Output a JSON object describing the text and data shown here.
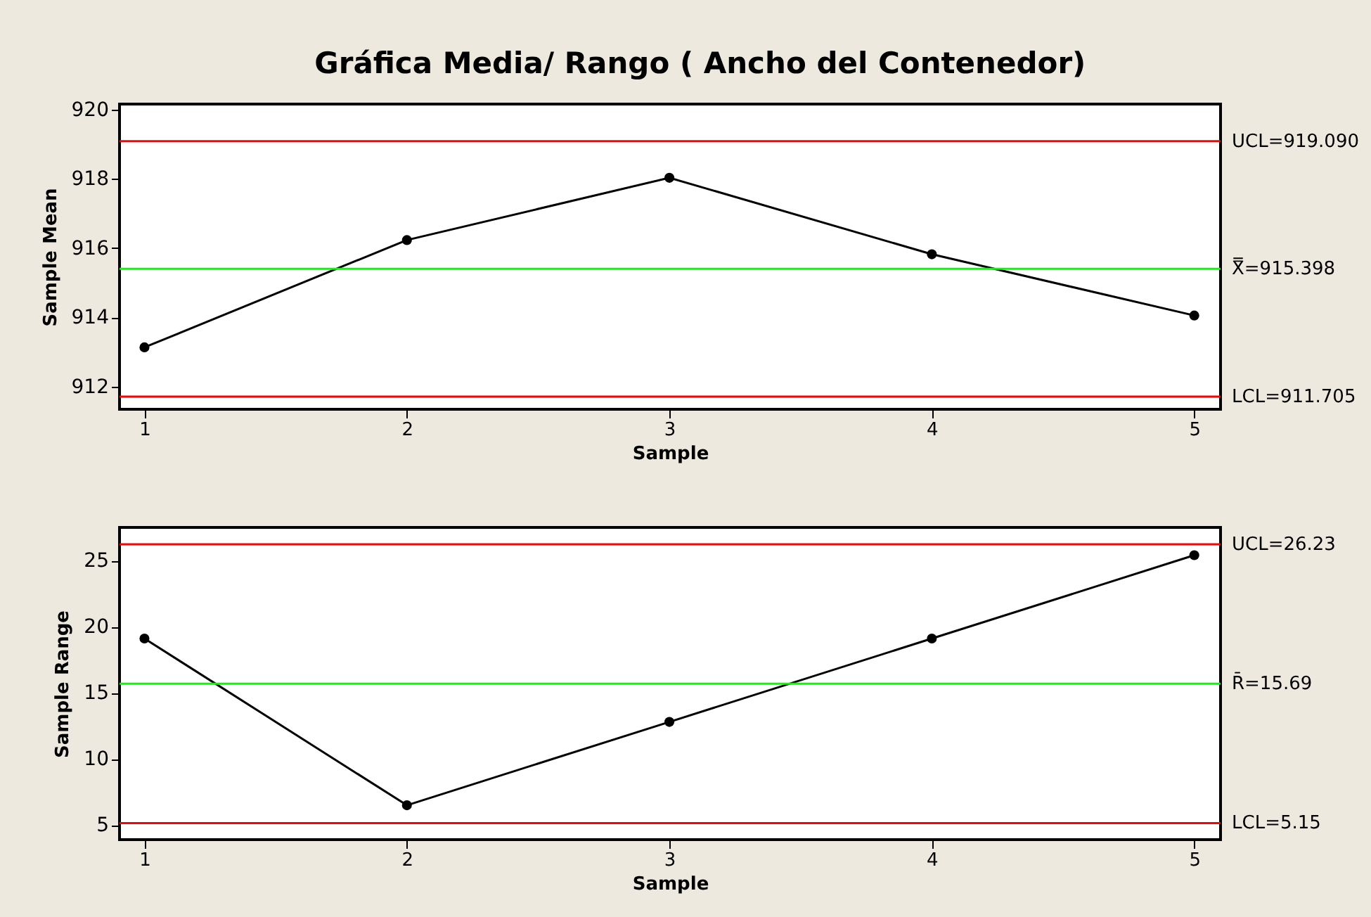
{
  "chart_data": [
    {
      "type": "line",
      "title": "Gráfica Media/ Rango ( Ancho del Contenedor)",
      "xlabel": "Sample",
      "ylabel": "Sample Mean",
      "x": [
        1,
        2,
        3,
        4,
        5
      ],
      "xlim": [
        0.905,
        5.1
      ],
      "xticks": [
        1,
        2,
        3,
        4,
        5
      ],
      "ylim": [
        911.34,
        920.16
      ],
      "yticks": [
        912,
        914,
        916,
        918,
        920
      ],
      "marker": "circle",
      "grid": false,
      "series": [
        {
          "color": "#000000",
          "values": [
            913.13,
            916.23,
            918.03,
            915.82,
            914.05
          ]
        }
      ],
      "ref_lines": [
        {
          "axis": "y",
          "value": 919.09,
          "label": "UCL=919.090",
          "color": "#ff0000"
        },
        {
          "axis": "y",
          "value": 915.398,
          "label": "X̿=915.398",
          "color": "#00ff00"
        },
        {
          "axis": "y",
          "value": 911.705,
          "label": "LCL=911.705",
          "color": "#ff0000"
        }
      ]
    },
    {
      "type": "line",
      "xlabel": "Sample",
      "ylabel": "Sample Range",
      "x": [
        1,
        2,
        3,
        4,
        5
      ],
      "xlim": [
        0.905,
        5.1
      ],
      "xticks": [
        1,
        2,
        3,
        4,
        5
      ],
      "ylim": [
        3.9,
        27.5
      ],
      "yticks": [
        5,
        10,
        15,
        20,
        25
      ],
      "marker": "circle",
      "grid": false,
      "series": [
        {
          "color": "#000000",
          "values": [
            19.1,
            6.5,
            12.8,
            19.1,
            25.4
          ]
        }
      ],
      "ref_lines": [
        {
          "axis": "y",
          "value": 26.23,
          "label": "UCL=26.23",
          "color": "#ff0000"
        },
        {
          "axis": "y",
          "value": 15.69,
          "label": "R̄=15.69",
          "color": "#00ff00"
        },
        {
          "axis": "y",
          "value": 5.15,
          "label": "LCL=5.15",
          "color": "#ff0000"
        }
      ]
    }
  ]
}
